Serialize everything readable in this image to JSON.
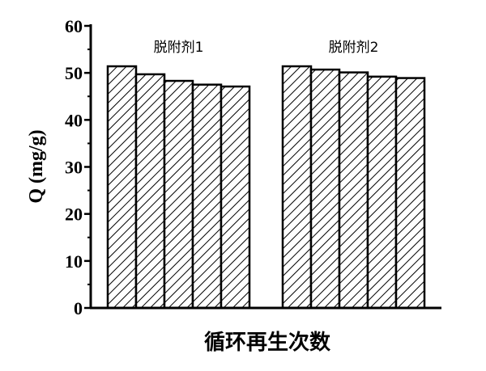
{
  "chart_data": {
    "type": "bar",
    "title": "",
    "xlabel": "循环再生次数",
    "ylabel": "Q (mg/g)",
    "ylim": [
      0,
      60
    ],
    "yticks": [
      0,
      10,
      20,
      30,
      40,
      50,
      60
    ],
    "grid": false,
    "pattern": "diagonal-hatch",
    "bar_fill_color": "#ffffff",
    "bar_stroke_color": "#000000",
    "series": [
      {
        "name": "脱附剂1",
        "values": [
          51.4,
          49.7,
          48.3,
          47.5,
          47.1
        ]
      },
      {
        "name": "脱附剂2",
        "values": [
          51.4,
          50.7,
          50.1,
          49.2,
          48.9
        ]
      }
    ]
  }
}
